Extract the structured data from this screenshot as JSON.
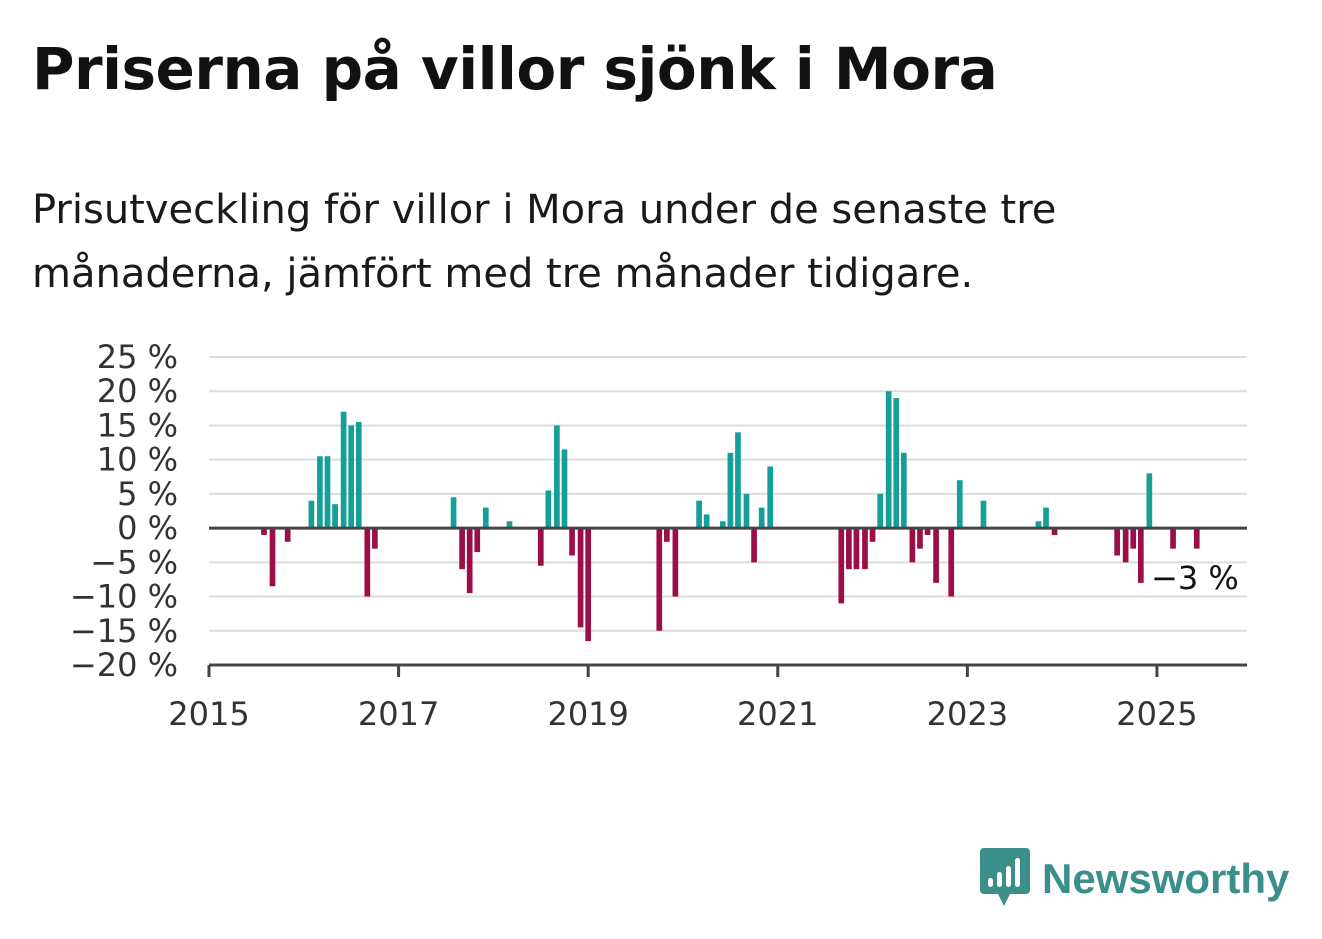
{
  "header": {
    "title": "Priserna på villor sjönk i Mora",
    "subtitle": "Prisutveckling för villor i Mora under de senaste tre månaderna, jämfört med tre månader tidigare."
  },
  "brand": {
    "name": "Newsworthy",
    "icon": "newsworthy-logo-icon",
    "color": "#3a8f8a"
  },
  "chart_data": {
    "type": "bar",
    "title": "",
    "xlabel": "",
    "ylabel": "",
    "x_unit": "year",
    "xlim": [
      2015,
      2025.95
    ],
    "ylim": [
      -20,
      25
    ],
    "x_ticks": [
      2015,
      2017,
      2019,
      2021,
      2023,
      2025
    ],
    "x_tick_labels": [
      "2015",
      "2017",
      "2019",
      "2021",
      "2023",
      "2025"
    ],
    "y_ticks": [
      25,
      20,
      15,
      10,
      5,
      0,
      -5,
      -10,
      -15,
      -20
    ],
    "y_tick_labels": [
      "25 %",
      "20 %",
      "15 %",
      "10 %",
      "5 %",
      "0 %",
      "−5 %",
      "−10 %",
      "−15 %",
      "−20 %"
    ],
    "grid": true,
    "colors": {
      "positive": "#14a098",
      "negative": "#9b0e48",
      "grid": "#dddddd",
      "zero": "#444444"
    },
    "end_label": "−3 %",
    "x": [
      2015.58,
      2015.67,
      2015.83,
      2016.08,
      2016.17,
      2016.25,
      2016.33,
      2016.42,
      2016.5,
      2016.58,
      2016.67,
      2016.75,
      2017.58,
      2017.67,
      2017.75,
      2017.83,
      2017.92,
      2018.17,
      2018.5,
      2018.58,
      2018.67,
      2018.75,
      2018.83,
      2018.92,
      2019.0,
      2019.75,
      2019.83,
      2019.92,
      2020.17,
      2020.25,
      2020.42,
      2020.5,
      2020.58,
      2020.67,
      2020.75,
      2020.83,
      2020.92,
      2021.67,
      2021.75,
      2021.83,
      2021.92,
      2022.0,
      2022.08,
      2022.17,
      2022.25,
      2022.33,
      2022.42,
      2022.5,
      2022.58,
      2022.67,
      2022.83,
      2022.92,
      2023.17,
      2023.75,
      2023.83,
      2023.92,
      2024.58,
      2024.67,
      2024.75,
      2024.83,
      2024.92,
      2025.17,
      2025.42
    ],
    "values": [
      -1,
      -8.5,
      -2,
      4,
      10.5,
      10.5,
      3.5,
      17,
      15,
      15.5,
      -10,
      -3,
      4.5,
      -6,
      -9.5,
      -3.5,
      3,
      1,
      -5.5,
      5.5,
      15,
      11.5,
      -4,
      -14.5,
      -16.5,
      -15,
      -2,
      -10,
      4,
      2,
      1,
      11,
      14,
      5,
      -5,
      3,
      9,
      -11,
      -6,
      -6,
      -6,
      -2,
      5,
      20,
      19,
      11,
      -5,
      -3,
      -1,
      -8,
      -10,
      7,
      4,
      1,
      3,
      -1,
      -4,
      -5,
      -3,
      -8,
      8,
      -3,
      -3
    ]
  }
}
